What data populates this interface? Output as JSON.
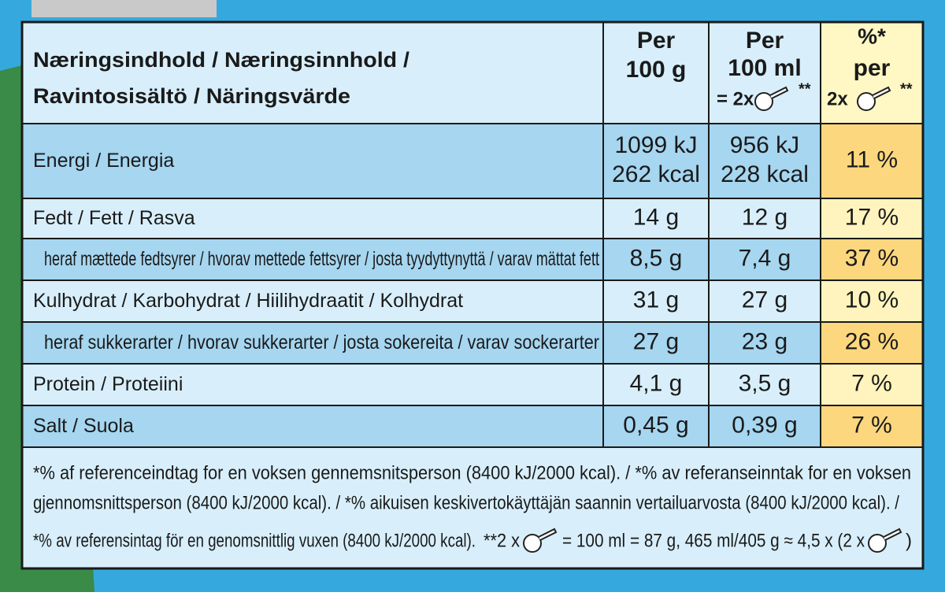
{
  "header": {
    "title": [
      "Næringsindhold / Næringsinnhold /",
      "Ravintosisältö / Näringsvärde"
    ],
    "per_100g": [
      "Per",
      "100 g"
    ],
    "per_100ml": [
      "Per",
      "100 ml",
      "= 2x",
      "**"
    ],
    "percent": [
      "%*",
      "per",
      "2x",
      "**"
    ]
  },
  "rows": [
    {
      "label": "Energi / Energia",
      "per_100g": [
        "1099 kJ",
        "262 kcal"
      ],
      "per_100ml": [
        "956 kJ",
        "228 kcal"
      ],
      "percent": "11 %"
    },
    {
      "label": "Fedt / Fett / Rasva",
      "per_100g": [
        "14 g"
      ],
      "per_100ml": [
        "12 g"
      ],
      "percent": "17 %"
    },
    {
      "label": "heraf mættede fedtsyrer / hvorav mettede fettsyrer / josta tyydyttynyttä / varav mättat fett",
      "per_100g": [
        "8,5 g"
      ],
      "per_100ml": [
        "7,4 g"
      ],
      "percent": "37 %"
    },
    {
      "label": "Kulhydrat / Karbohydrat / Hiilihydraatit / Kolhydrat",
      "per_100g": [
        "31 g"
      ],
      "per_100ml": [
        "27 g"
      ],
      "percent": "10 %"
    },
    {
      "label": "heraf sukkerarter / hvorav sukkerarter / josta sokereita / varav sockerarter",
      "per_100g": [
        "27 g"
      ],
      "per_100ml": [
        "23 g"
      ],
      "percent": "26 %"
    },
    {
      "label": "Protein / Proteiini",
      "per_100g": [
        "4,1 g"
      ],
      "per_100ml": [
        "3,5 g"
      ],
      "percent": "7 %"
    },
    {
      "label": "Salt / Suola",
      "per_100g": [
        "0,45 g"
      ],
      "per_100ml": [
        "0,39 g"
      ],
      "percent": "7 %"
    }
  ],
  "footnote": {
    "lines": [
      "*% af referenceindtag for en voksen gennemsnitsperson (8400 kJ/2000 kcal). / *% av referanseinntak for en voksen",
      "gjennomsnittsperson (8400 kJ/2000 kcal). / *% aikuisen keskivertokäyttäjän saannin vertailuarvosta (8400 kJ/2000 kcal). /"
    ],
    "last_line": [
      "*% av referensintag för en genomsnittlig vuxen (8400 kJ/2000 kcal).",
      "**2 x",
      "= 100 ml = 87 g, 465 ml/405 g ≈ 4,5 x (2 x",
      ")"
    ]
  }
}
